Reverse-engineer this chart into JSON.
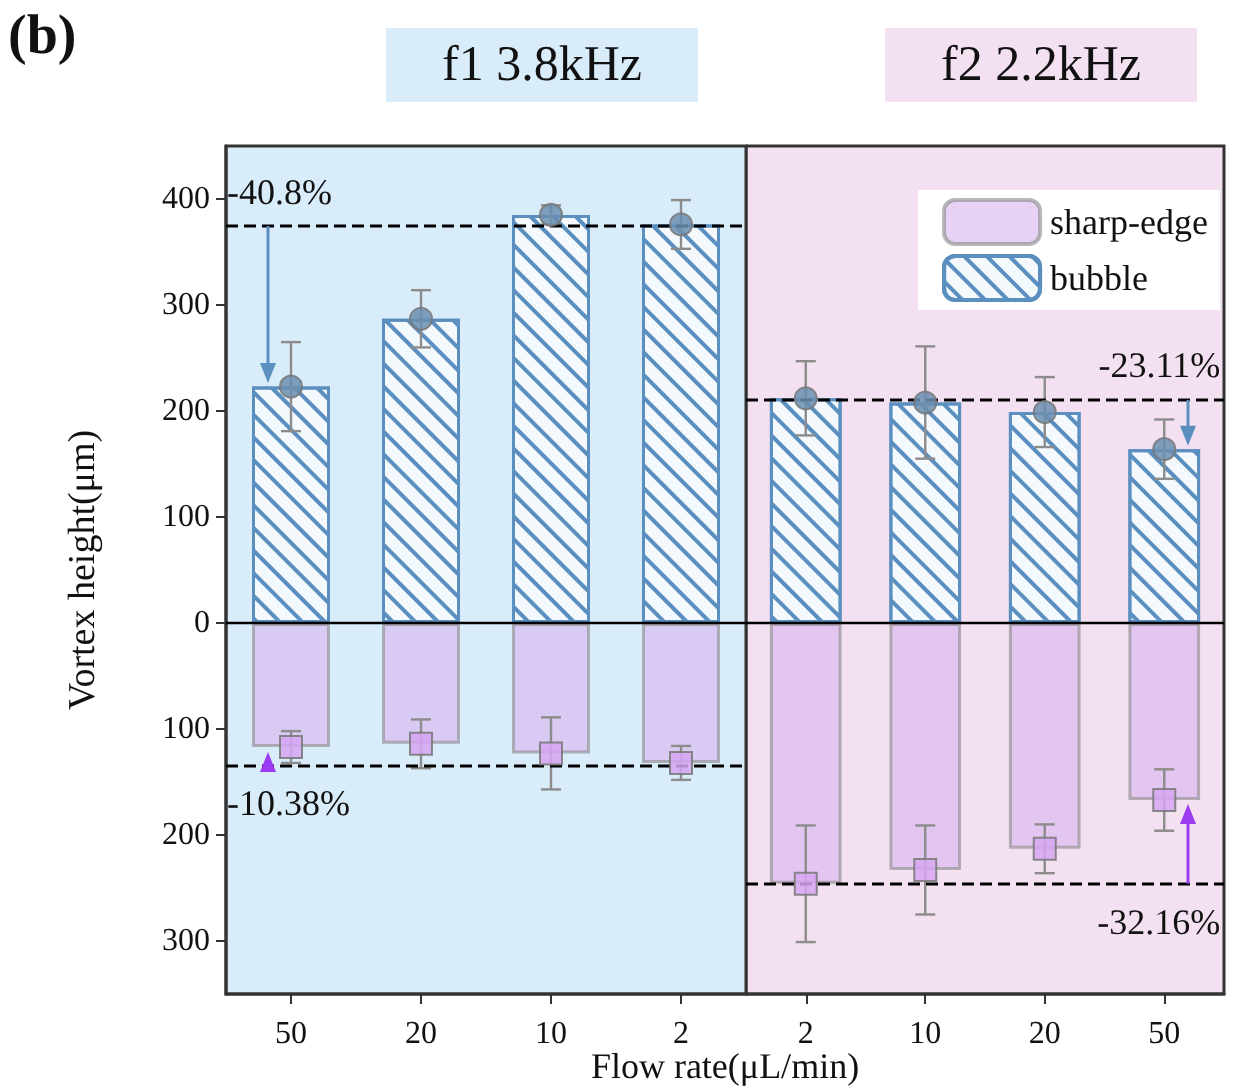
{
  "chart_data": [
    {
      "type": "bar",
      "title": "f1 3.8kHz",
      "ylabel": "Vortex height(μm)",
      "xlabel": "Flow rate(μL/min)",
      "annotations": [
        "(b)",
        {
          "text": "-40.8%",
          "x": "50",
          "y": 375
        },
        {
          "text": "-10.38%",
          "x": "50",
          "y": -134
        }
      ],
      "categories": [
        "50",
        "20",
        "10",
        "2"
      ],
      "series": [
        {
          "color": "#d9b4ee",
          "values": [
            -117,
            -114,
            -123,
            -132
          ],
          "errors": [
            15,
            23,
            34,
            16
          ]
        },
        {
          "color": "#5b8fbf",
          "values": [
            223,
            287,
            385,
            376
          ],
          "errors": [
            42,
            27,
            9,
            23
          ]
        },
        {
          "type": "scatter",
          "color": "#d6a6f2",
          "marker": "square",
          "x": [
            "50",
            "20",
            "10",
            "2"
          ],
          "values": [
            -117,
            -114,
            -123,
            -132
          ]
        },
        {
          "type": "scatter",
          "color": "#6b8fb0",
          "marker": "circle",
          "x": [
            "50",
            "20",
            "10",
            "2"
          ],
          "values": [
            223,
            287,
            385,
            376
          ]
        }
      ],
      "ylim": [
        -350,
        450
      ],
      "yticks": [
        {
          "value": -300,
          "label": "300"
        },
        {
          "value": -200,
          "label": "200"
        },
        {
          "value": -100,
          "label": "100"
        },
        0,
        100,
        200,
        300,
        400
      ],
      "ref_lines": [
        {
          "axis": "y",
          "value": 0,
          "line_style": "solid",
          "color": "#000000"
        },
        {
          "axis": "y",
          "value": 375,
          "line_style": "dashed",
          "color": "#000000"
        },
        {
          "axis": "y",
          "value": -134,
          "line_style": "dashed",
          "color": "#000000"
        }
      ],
      "bands": [
        {
          "axis": "x",
          "from": "50",
          "to": "2",
          "color": "#d9ecf9"
        }
      ],
      "legend": false
    },
    {
      "type": "bar",
      "title": "f2 2.2kHz",
      "annotations": [
        {
          "text": "-23.11%",
          "x": "50",
          "y": 211
        },
        {
          "text": "-32.16%",
          "x": "50",
          "y": -246
        }
      ],
      "categories": [
        "2",
        "10",
        "20",
        "50"
      ],
      "series": [
        {
          "name": "sharp-edge",
          "color": "#d9b4ee",
          "values": [
            -246,
            -233,
            -213,
            -167
          ],
          "errors": [
            55,
            42,
            23,
            29
          ]
        },
        {
          "name": "bubble",
          "color": "#5b8fbf",
          "values": [
            212,
            208,
            199,
            164
          ],
          "errors": [
            35,
            53,
            33,
            28
          ]
        },
        {
          "type": "scatter",
          "color": "#d6a6f2",
          "marker": "square",
          "x": [
            "2",
            "10",
            "20",
            "50"
          ],
          "values": [
            -246,
            -233,
            -213,
            -167
          ]
        },
        {
          "type": "scatter",
          "color": "#6b8fb0",
          "marker": "circle",
          "x": [
            "2",
            "10",
            "20",
            "50"
          ],
          "values": [
            212,
            208,
            199,
            164
          ]
        }
      ],
      "ylim": [
        -350,
        450
      ],
      "ref_lines": [
        {
          "axis": "y",
          "value": 0,
          "line_style": "solid",
          "color": "#000000"
        },
        {
          "axis": "y",
          "value": 211,
          "line_style": "dashed",
          "color": "#000000"
        },
        {
          "axis": "y",
          "value": -246,
          "line_style": "dashed",
          "color": "#000000"
        }
      ],
      "bands": [
        {
          "axis": "x",
          "from": "2",
          "to": "50",
          "color": "#f3e1f1"
        }
      ],
      "tick_labels": "x",
      "legend": "top right"
    }
  ]
}
